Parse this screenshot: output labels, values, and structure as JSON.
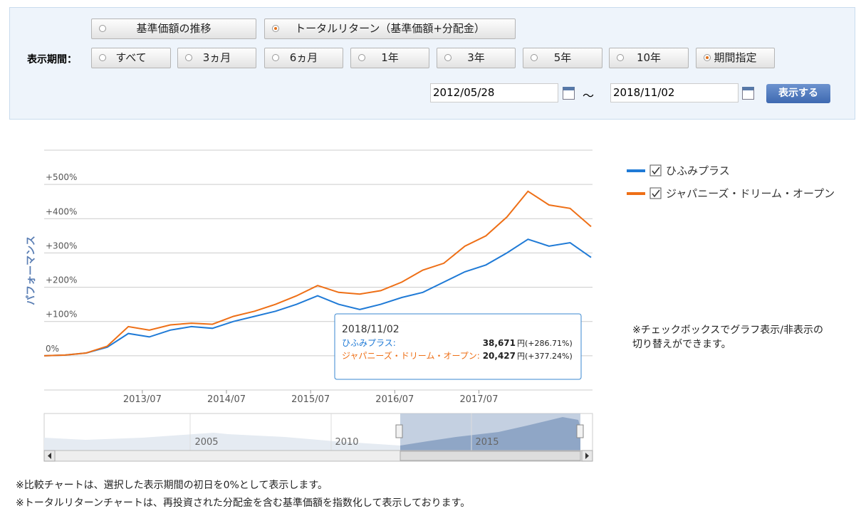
{
  "controls": {
    "mode_buttons": [
      "基準価額の推移",
      "トータルリターン（基準価額+分配金）"
    ],
    "mode_selected": 1,
    "period_label": "表示期間：",
    "period_buttons": [
      "すべて",
      "3ヵ月",
      "6ヵ月",
      "1年",
      "3年",
      "5年",
      "10年",
      "期間指定"
    ],
    "period_selected": 7,
    "start_date": "2012/05/28",
    "range_sep": "～",
    "end_date": "2018/11/02",
    "submit": "表示する"
  },
  "chart_data": {
    "type": "line",
    "y_label": "パフォーマンス",
    "x": [
      "2012/05",
      "2012/08",
      "2012/11",
      "2013/02",
      "2013/05",
      "2013/08",
      "2013/11",
      "2014/02",
      "2014/05",
      "2014/08",
      "2014/11",
      "2015/02",
      "2015/05",
      "2015/08",
      "2015/11",
      "2016/02",
      "2016/05",
      "2016/08",
      "2016/11",
      "2017/02",
      "2017/05",
      "2017/08",
      "2017/11",
      "2018/02",
      "2018/05",
      "2018/08",
      "2018/11"
    ],
    "series": [
      {
        "name": "ひふみプラス",
        "color": "#1f7ad6",
        "values": [
          0,
          2,
          8,
          25,
          65,
          55,
          75,
          85,
          80,
          100,
          115,
          130,
          150,
          175,
          150,
          135,
          150,
          170,
          185,
          215,
          245,
          265,
          300,
          340,
          320,
          330,
          287
        ]
      },
      {
        "name": "ジャパニーズ・ドリーム・オープン",
        "color": "#ee6f16",
        "values": [
          0,
          2,
          8,
          28,
          85,
          75,
          90,
          95,
          92,
          115,
          130,
          150,
          175,
          205,
          185,
          180,
          190,
          215,
          250,
          270,
          320,
          350,
          405,
          480,
          440,
          430,
          377
        ]
      }
    ],
    "xlim": [
      "2012/05",
      "2018/11"
    ],
    "xticks": [
      "2013/07",
      "2014/07",
      "2015/07",
      "2016/07",
      "2017/07"
    ],
    "ylim": [
      -100,
      600
    ],
    "yticks": [
      {
        "value": 0,
        "label": "0%"
      },
      {
        "value": 100,
        "label": "+100%"
      },
      {
        "value": 200,
        "label": "+200%"
      },
      {
        "value": 300,
        "label": "+300%"
      },
      {
        "value": 400,
        "label": "+400%"
      },
      {
        "value": 500,
        "label": "+500%"
      }
    ],
    "grid": true
  },
  "tooltip": {
    "date": "2018/11/02",
    "rows": [
      {
        "name": "ひふみプラス:",
        "price": "38,671",
        "rest": "円(+286.71%)"
      },
      {
        "name": "ジャパニーズ・ドリーム・オープン:",
        "price": "20,427",
        "rest": "円(+377.24%)"
      }
    ]
  },
  "navigator": {
    "labels": [
      "2005",
      "2010",
      "2015"
    ]
  },
  "legend_note": [
    "※チェックボックスでグラフ表示/非表示の",
    "切り替えができます。"
  ],
  "footnotes": [
    "※比較チャートは、選択した表示期間の初日を0%として表示します。",
    "※トータルリターンチャートは、再投資された分配金を含む基準価額を指数化して表示しております。"
  ]
}
